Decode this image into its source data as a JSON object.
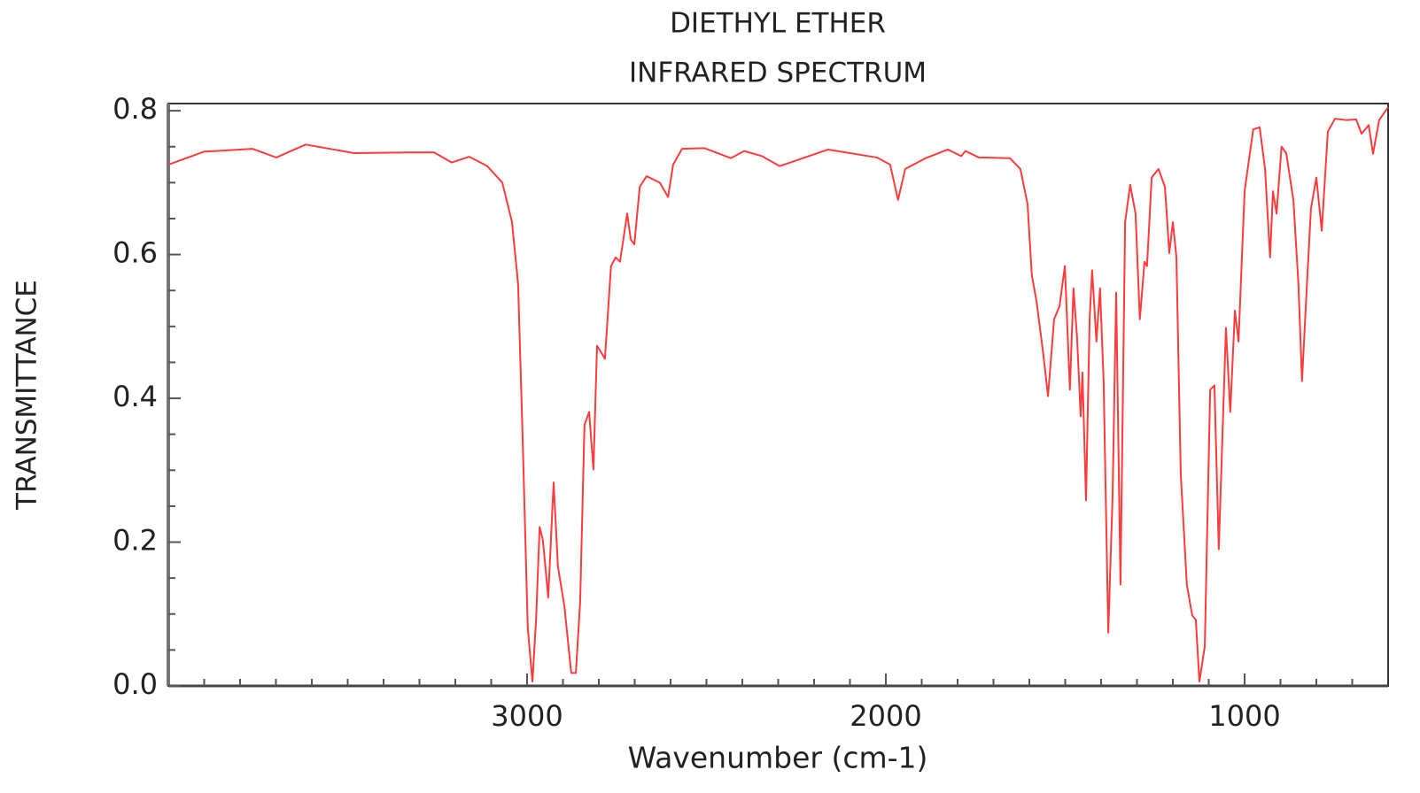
{
  "chart_data": {
    "type": "line",
    "title": "DIETHYL ETHER",
    "subtitle": "INFRARED SPECTRUM",
    "x_label": "Wavenumber (cm-1)",
    "y_label": "TRANSMITTANCE",
    "xlim": [
      4000,
      600
    ],
    "ylim": [
      0,
      0.81
    ],
    "xticks": [
      3000,
      2000,
      1000
    ],
    "yticks": [
      {
        "value": 0,
        "label": "0.0"
      },
      0.2,
      0.4,
      0.6,
      0.8
    ],
    "xminorticks": [
      3900,
      3800,
      3700,
      3600,
      3500,
      3400,
      3300,
      3200,
      3100,
      2900,
      2800,
      2700,
      2600,
      2500,
      2400,
      2300,
      2200,
      2100,
      1900,
      1800,
      1700,
      1600,
      1500,
      1400,
      1300,
      1200,
      1100,
      900,
      800,
      700
    ],
    "yminorticks": [
      0.05,
      0.1,
      0.15,
      0.25,
      0.3,
      0.35,
      0.45,
      0.5,
      0.55,
      0.65,
      0.7,
      0.75
    ],
    "series": [
      {
        "color": "#ff3b3b",
        "x": [
          4000,
          3901,
          3765,
          3699,
          3617,
          3482,
          3333,
          3259,
          3210,
          3161,
          3111,
          3069,
          3042,
          3025,
          3012,
          2998,
          2985,
          2975,
          2965,
          2956,
          2941,
          2926,
          2914,
          2896,
          2877,
          2864,
          2852,
          2840,
          2827,
          2815,
          2805,
          2790,
          2783,
          2766,
          2753,
          2741,
          2721,
          2711,
          2701,
          2686,
          2667,
          2630,
          2607,
          2593,
          2568,
          2506,
          2432,
          2395,
          2346,
          2296,
          2161,
          2025,
          1988,
          1966,
          1946,
          1889,
          1827,
          1790,
          1778,
          1741,
          1654,
          1625,
          1605,
          1593,
          1580,
          1561,
          1548,
          1531,
          1516,
          1501,
          1487,
          1477,
          1467,
          1457,
          1452,
          1442,
          1432,
          1425,
          1413,
          1403,
          1393,
          1380,
          1368,
          1358,
          1346,
          1333,
          1319,
          1304,
          1292,
          1279,
          1272,
          1259,
          1240,
          1222,
          1210,
          1200,
          1190,
          1178,
          1161,
          1146,
          1136,
          1126,
          1111,
          1096,
          1084,
          1072,
          1052,
          1040,
          1027,
          1017,
          1000,
          976,
          958,
          943,
          929,
          921,
          911,
          897,
          884,
          864,
          850,
          840,
          825,
          815,
          800,
          785,
          768,
          748,
          716,
          689,
          674,
          654,
          642,
          625,
          600
        ],
        "values": [
          0.725,
          0.743,
          0.747,
          0.735,
          0.753,
          0.741,
          0.742,
          0.742,
          0.728,
          0.736,
          0.723,
          0.7,
          0.645,
          0.559,
          0.338,
          0.08,
          0.006,
          0.092,
          0.221,
          0.203,
          0.123,
          0.283,
          0.166,
          0.111,
          0.018,
          0.018,
          0.117,
          0.363,
          0.381,
          0.301,
          0.473,
          0.461,
          0.455,
          0.584,
          0.596,
          0.59,
          0.657,
          0.621,
          0.614,
          0.694,
          0.709,
          0.7,
          0.68,
          0.725,
          0.747,
          0.748,
          0.734,
          0.744,
          0.737,
          0.723,
          0.746,
          0.735,
          0.725,
          0.676,
          0.719,
          0.734,
          0.746,
          0.737,
          0.744,
          0.735,
          0.734,
          0.719,
          0.67,
          0.571,
          0.535,
          0.461,
          0.403,
          0.51,
          0.528,
          0.584,
          0.412,
          0.553,
          0.485,
          0.375,
          0.436,
          0.258,
          0.51,
          0.578,
          0.479,
          0.553,
          0.424,
          0.074,
          0.264,
          0.547,
          0.141,
          0.645,
          0.697,
          0.657,
          0.51,
          0.59,
          0.584,
          0.707,
          0.719,
          0.694,
          0.602,
          0.645,
          0.596,
          0.295,
          0.141,
          0.098,
          0.092,
          0.006,
          0.055,
          0.412,
          0.418,
          0.19,
          0.498,
          0.381,
          0.522,
          0.479,
          0.688,
          0.774,
          0.777,
          0.719,
          0.596,
          0.688,
          0.657,
          0.75,
          0.741,
          0.676,
          0.559,
          0.424,
          0.571,
          0.664,
          0.707,
          0.633,
          0.771,
          0.789,
          0.787,
          0.788,
          0.768,
          0.78,
          0.74,
          0.787,
          0.805
        ]
      }
    ]
  }
}
